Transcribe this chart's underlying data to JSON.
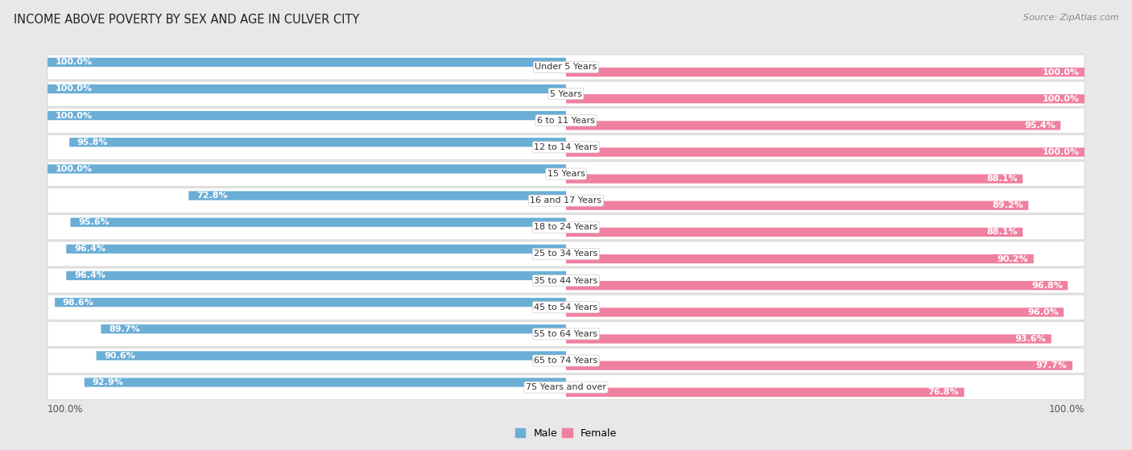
{
  "title": "INCOME ABOVE POVERTY BY SEX AND AGE IN CULVER CITY",
  "source": "Source: ZipAtlas.com",
  "categories": [
    "Under 5 Years",
    "5 Years",
    "6 to 11 Years",
    "12 to 14 Years",
    "15 Years",
    "16 and 17 Years",
    "18 to 24 Years",
    "25 to 34 Years",
    "35 to 44 Years",
    "45 to 54 Years",
    "55 to 64 Years",
    "65 to 74 Years",
    "75 Years and over"
  ],
  "male": [
    100.0,
    100.0,
    100.0,
    95.8,
    100.0,
    72.8,
    95.6,
    96.4,
    96.4,
    98.6,
    89.7,
    90.6,
    92.9
  ],
  "female": [
    100.0,
    100.0,
    95.4,
    100.0,
    88.1,
    89.2,
    88.1,
    90.2,
    96.8,
    96.0,
    93.6,
    97.7,
    76.8
  ],
  "male_color": "#6aaed6",
  "female_color": "#f080a0",
  "male_light_color": "#b8d4ea",
  "female_light_color": "#f8c0d0",
  "bg_color": "#e8e8e8",
  "bar_bg_color": "#ffffff",
  "title_fontsize": 10.5,
  "source_fontsize": 8,
  "cat_fontsize": 8,
  "val_fontsize": 8
}
